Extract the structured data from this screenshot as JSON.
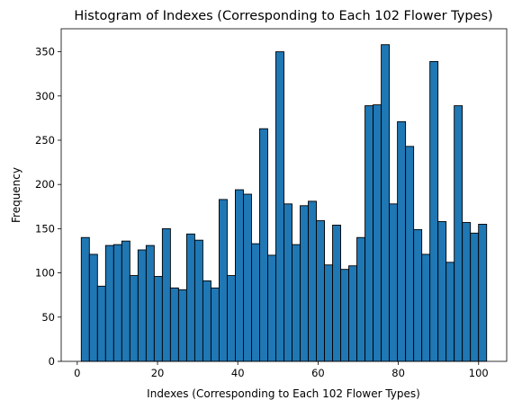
{
  "chart_data": {
    "type": "bar",
    "title": "Histogram of Indexes (Corresponding to Each 102 Flower Types)",
    "xlabel": "Indexes (Corresponding to Each 102 Flower Types)",
    "ylabel": "Frequency",
    "xlim": [
      -4,
      107
    ],
    "ylim": [
      0,
      376
    ],
    "xticks": [
      0,
      20,
      40,
      60,
      80,
      100
    ],
    "yticks": [
      0,
      50,
      100,
      150,
      200,
      250,
      300,
      350
    ],
    "grid": false,
    "bin_start": 1,
    "bin_width": 2.02,
    "values": [
      140,
      121,
      85,
      131,
      132,
      136,
      97,
      126,
      131,
      96,
      150,
      83,
      81,
      144,
      137,
      91,
      83,
      183,
      97,
      194,
      189,
      133,
      263,
      120,
      350,
      178,
      132,
      176,
      181,
      159,
      109,
      154,
      104,
      108,
      140,
      289,
      290,
      358,
      178,
      271,
      243,
      149,
      121,
      339,
      158,
      112,
      289,
      157,
      145,
      155
    ],
    "colors": {
      "bar": "#1f77b4",
      "edge": "#000000"
    }
  }
}
